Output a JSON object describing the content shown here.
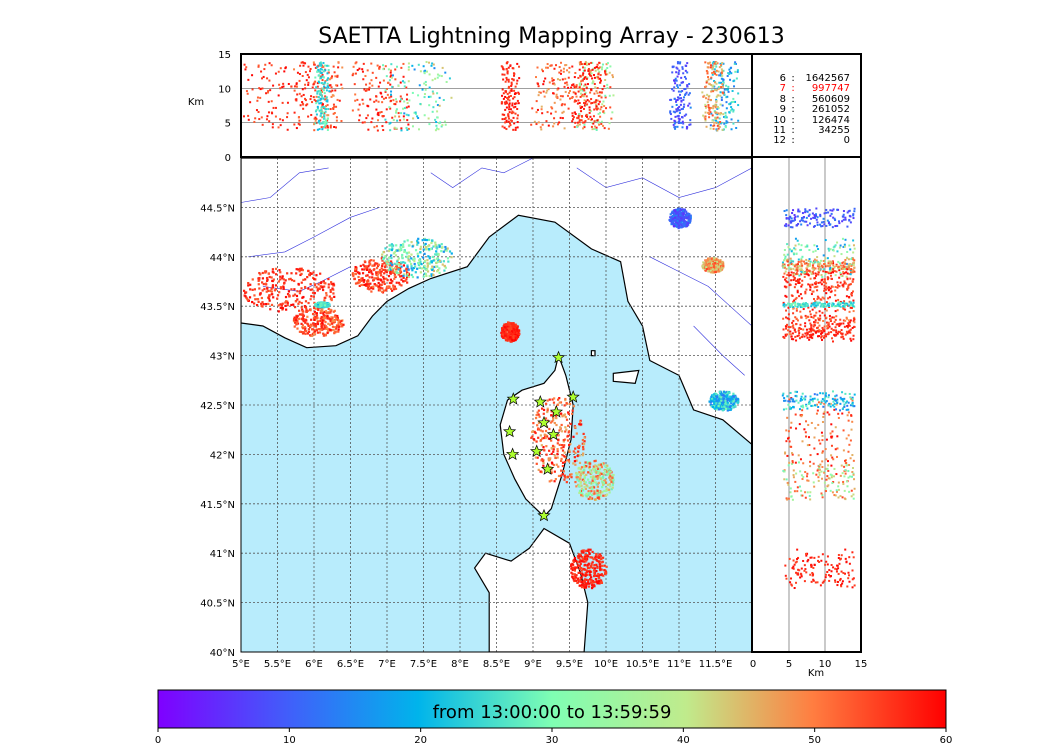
{
  "title": "SAETTA Lightning Mapping Array - 230613",
  "altitude_unit_label": "Km",
  "legend": [
    {
      "key": "6",
      "value": "1642567",
      "color": "#000000"
    },
    {
      "key": "7",
      "value": "997747",
      "color": "#ff0000"
    },
    {
      "key": "8",
      "value": "560609",
      "color": "#000000"
    },
    {
      "key": "9",
      "value": "261052",
      "color": "#000000"
    },
    {
      "key": "10",
      "value": "126474",
      "color": "#000000"
    },
    {
      "key": "11",
      "value": "34255",
      "color": "#000000"
    },
    {
      "key": "12",
      "value": "0",
      "color": "#000000"
    }
  ],
  "colorbar": {
    "label": "from 13:00:00 to 13:59:59",
    "ticks": [
      "0",
      "10",
      "20",
      "30",
      "40",
      "50",
      "60"
    ],
    "range": [
      0,
      60
    ],
    "colormap": "rainbow"
  },
  "colors": {
    "sea": "#b8ecfc",
    "land": "#ffffff",
    "rivers": "#3333dd",
    "stations": "#adff2f"
  },
  "chart_data": {
    "type": "scatter",
    "map": {
      "lon_range": [
        5,
        12
      ],
      "lat_range": [
        40,
        45
      ],
      "lon_ticks": [
        "5°E",
        "5.5°E",
        "6°E",
        "6.5°E",
        "7°E",
        "7.5°E",
        "8°E",
        "8.5°E",
        "9°E",
        "9.5°E",
        "10°E",
        "10.5°E",
        "11°E",
        "11.5°E"
      ],
      "lat_ticks": [
        "40°N",
        "40.5°N",
        "41°N",
        "41.5°N",
        "42°N",
        "42.5°N",
        "43°N",
        "43.5°N",
        "44°N",
        "44.5°N"
      ],
      "grid": true
    },
    "top_panel": {
      "ylabel": "Km",
      "ylim": [
        0,
        15
      ],
      "y_ticks": [
        "0",
        "5",
        "10",
        "15"
      ]
    },
    "right_panel": {
      "xlabel": "Km",
      "xlim": [
        0,
        15
      ],
      "x_ticks": [
        "0",
        "5",
        "10",
        "15"
      ]
    },
    "clusters": [
      {
        "lon": [
          5.0,
          6.3
        ],
        "lat": [
          43.45,
          43.9
        ],
        "t": [
          52,
          60
        ]
      },
      {
        "lon": [
          5.7,
          6.4
        ],
        "lat": [
          43.2,
          43.5
        ],
        "t": [
          48,
          60
        ]
      },
      {
        "lon": [
          6.0,
          6.2
        ],
        "lat": [
          43.5,
          43.55
        ],
        "t": [
          20,
          30
        ]
      },
      {
        "lon": [
          6.5,
          7.3
        ],
        "lat": [
          43.65,
          44.0
        ],
        "t": [
          50,
          60
        ]
      },
      {
        "lon": [
          6.9,
          7.9
        ],
        "lat": [
          43.8,
          44.2
        ],
        "t": [
          15,
          45
        ]
      },
      {
        "lon": [
          8.55,
          8.8
        ],
        "lat": [
          43.15,
          43.35
        ],
        "t": [
          54,
          60
        ]
      },
      {
        "lon": [
          8.95,
          9.7
        ],
        "lat": [
          41.7,
          42.6
        ],
        "t": [
          45,
          60
        ]
      },
      {
        "lon": [
          9.55,
          10.1
        ],
        "lat": [
          41.55,
          41.95
        ],
        "t": [
          28,
          55
        ]
      },
      {
        "lon": [
          9.5,
          10.0
        ],
        "lat": [
          40.65,
          41.05
        ],
        "t": [
          54,
          60
        ]
      },
      {
        "lon": [
          11.4,
          11.8
        ],
        "lat": [
          42.45,
          42.65
        ],
        "t": [
          12,
          30
        ]
      },
      {
        "lon": [
          10.85,
          11.15
        ],
        "lat": [
          44.3,
          44.5
        ],
        "t": [
          5,
          15
        ]
      },
      {
        "lon": [
          11.3,
          11.6
        ],
        "lat": [
          43.85,
          44.0
        ],
        "t": [
          40,
          55
        ]
      }
    ],
    "stations": [
      [
        9.35,
        42.98
      ],
      [
        8.73,
        42.56
      ],
      [
        9.1,
        42.53
      ],
      [
        9.55,
        42.58
      ],
      [
        9.32,
        42.43
      ],
      [
        9.15,
        42.32
      ],
      [
        8.68,
        42.23
      ],
      [
        9.28,
        42.2
      ],
      [
        8.72,
        42.0
      ],
      [
        9.05,
        42.03
      ],
      [
        9.2,
        41.85
      ],
      [
        9.15,
        41.38
      ]
    ]
  }
}
